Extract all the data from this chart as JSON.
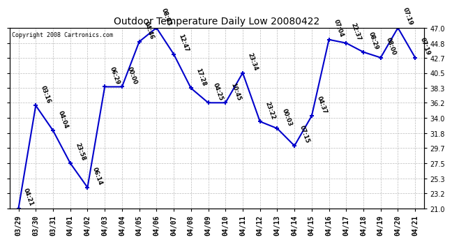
{
  "title": "Outdoor Temperature Daily Low 20080422",
  "copyright": "Copyright 2008 Cartronics.com",
  "x_labels": [
    "03/29",
    "03/30",
    "03/31",
    "04/01",
    "04/02",
    "04/03",
    "04/04",
    "04/05",
    "04/06",
    "04/07",
    "04/08",
    "04/09",
    "04/10",
    "04/11",
    "04/12",
    "04/13",
    "04/14",
    "04/15",
    "04/16",
    "04/17",
    "04/18",
    "04/19",
    "04/20",
    "04/21"
  ],
  "y_values": [
    21.0,
    35.8,
    32.2,
    27.5,
    24.0,
    38.5,
    38.5,
    45.0,
    47.0,
    43.2,
    38.3,
    36.2,
    36.2,
    40.5,
    33.5,
    32.5,
    30.0,
    34.3,
    45.3,
    44.8,
    43.5,
    42.7,
    47.0,
    42.7
  ],
  "point_labels": [
    "04:21",
    "03:16",
    "04:04",
    "23:58",
    "06:14",
    "06:29",
    "00:00",
    "04:46",
    "08:03",
    "12:47",
    "17:28",
    "04:25",
    "10:45",
    "23:34",
    "23:22",
    "00:03",
    "07:15",
    "04:37",
    "07:04",
    "22:37",
    "08:29",
    "08:00",
    "07:19",
    "07:19"
  ],
  "line_color": "#0000cc",
  "marker_color": "#0000cc",
  "background_color": "#ffffff",
  "grid_color": "#bbbbbb",
  "ylim": [
    21.0,
    47.0
  ],
  "yticks": [
    21.0,
    23.2,
    25.3,
    27.5,
    29.7,
    31.8,
    34.0,
    36.2,
    38.3,
    40.5,
    42.7,
    44.8,
    47.0
  ]
}
